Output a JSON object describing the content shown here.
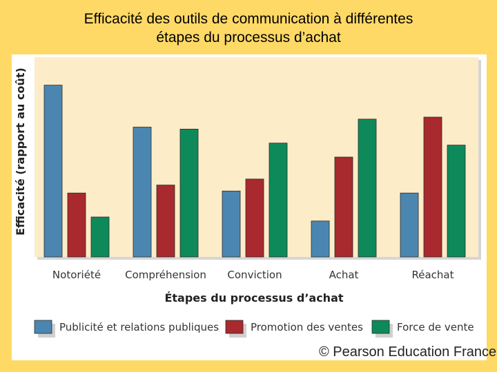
{
  "slide": {
    "title_line1": "Efficacité des outils de communication à différentes",
    "title_line2": "étapes du processus d’achat",
    "copyright": "© Pearson Education France"
  },
  "chart_data": {
    "type": "bar",
    "title": "",
    "xlabel": "Étapes du processus d’achat",
    "ylabel": "Efficacité (rapport au coût)",
    "categories": [
      "Notoriété",
      "Compréhension",
      "Conviction",
      "Achat",
      "Réachat"
    ],
    "series": [
      {
        "name": "Publicité et relations publiques",
        "color": "#4a86b0",
        "values": [
          86,
          65,
          33,
          18,
          32
        ]
      },
      {
        "name": "Promotion des ventes",
        "color": "#a8292e",
        "values": [
          32,
          36,
          39,
          50,
          70
        ]
      },
      {
        "name": "Force de vente",
        "color": "#0e8a5a",
        "values": [
          20,
          64,
          57,
          69,
          56
        ]
      }
    ],
    "ylim": [
      0,
      100
    ],
    "grid": false,
    "legend_position": "bottom",
    "plot_background": "#fdecc8"
  }
}
